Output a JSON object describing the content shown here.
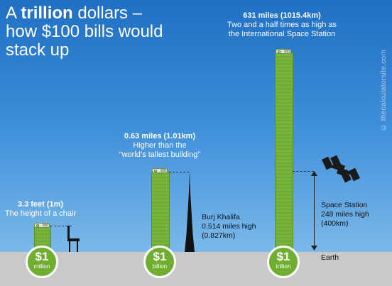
{
  "title": {
    "line1_pre": "A ",
    "line1_bold": "trillion",
    "line1_post": " dollars –",
    "line2": "how $100 bills would",
    "line3": "stack up"
  },
  "copyright": "© thecalculatorsite.com",
  "note_label": "100",
  "stacks": [
    {
      "coin_amount": "$1",
      "coin_unit": "million",
      "heading": "3.3 feet (1m)",
      "caption": "The height of a chair"
    },
    {
      "coin_amount": "$1",
      "coin_unit": "billion",
      "heading": "0.63 miles (1.01km)",
      "caption_line1": "Higher than the",
      "caption_line2": "“world’s tallest building”"
    },
    {
      "coin_amount": "$1",
      "coin_unit": "trillion",
      "heading": "631 miles (1015.4km)",
      "caption_line1": "Two and a half times as high as",
      "caption_line2": "the International Space Station"
    }
  ],
  "burj": {
    "line1": "Burj Khalifa",
    "line2": "0.514 miles high",
    "line3": "(0.827km)"
  },
  "station": {
    "line1": "Space Station",
    "line2": "248 miles high",
    "line3": "(400km)"
  },
  "earth_label": "Earth",
  "colors": {
    "sky_top": "#1f6fc4",
    "stack_green": "#77b43a",
    "coin_green": "#6fae2f",
    "ground": "#c9c9c9"
  }
}
